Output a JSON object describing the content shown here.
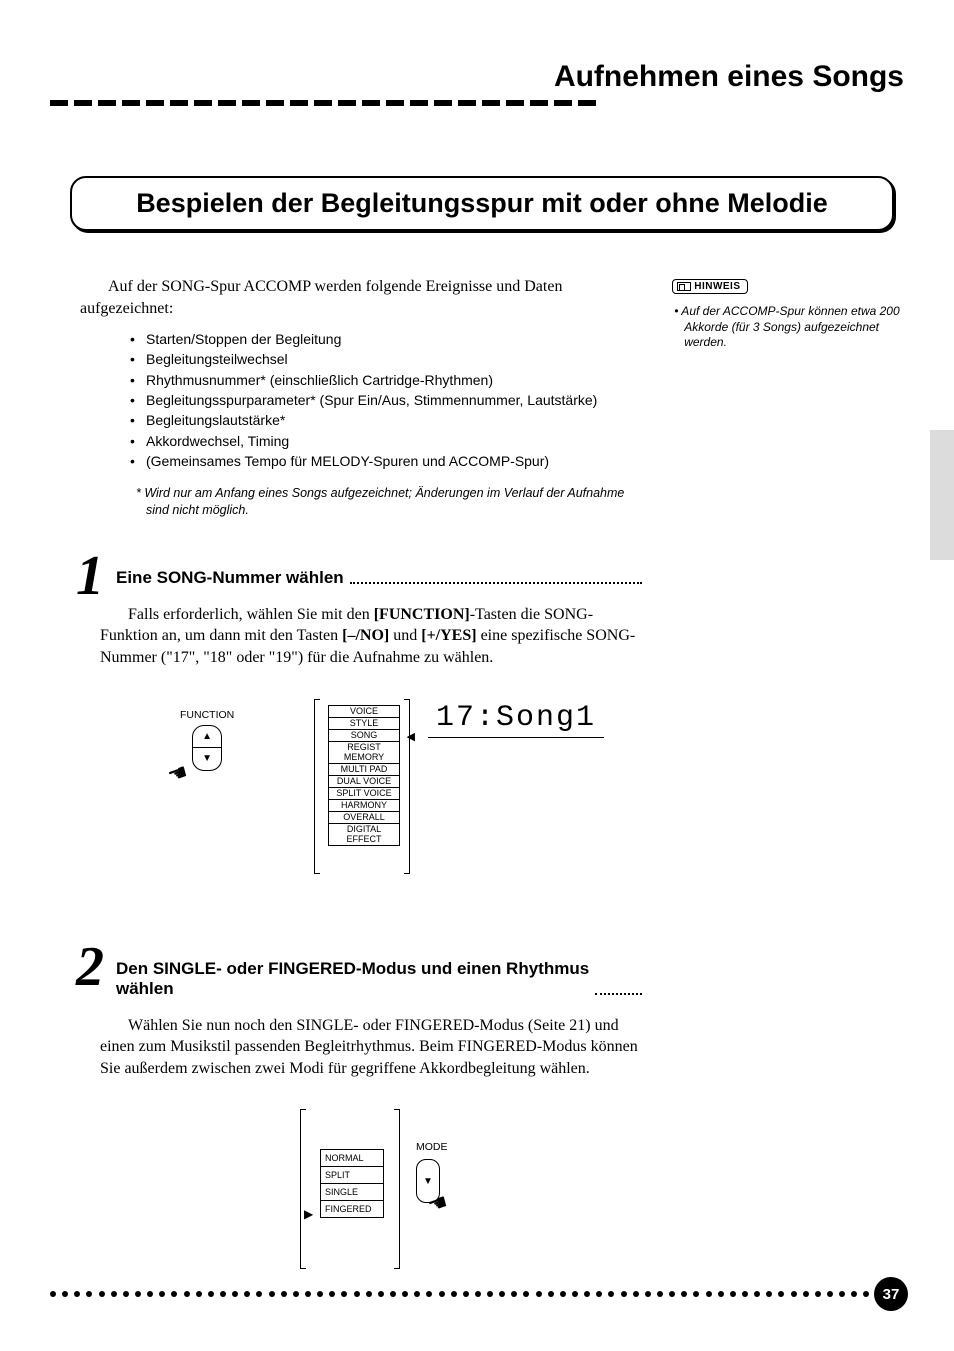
{
  "page": {
    "title": "Aufnehmen eines Songs",
    "number": "37"
  },
  "section_heading": "Bespielen der Begleitungsspur mit oder ohne Melodie",
  "intro": "Auf der SONG-Spur ACCOMP werden folgende Ereignisse und Daten aufgezeichnet:",
  "bullets": [
    "Starten/Stoppen der Begleitung",
    "Begleitungsteilwechsel",
    "Rhythmusnummer* (einschließlich Cartridge-Rhythmen)",
    "Begleitungsspurparameter* (Spur Ein/Aus, Stimmennummer, Lautstärke)",
    "Begleitungslautstärke*",
    "Akkordwechsel, Timing",
    "(Gemeinsames Tempo für MELODY-Spuren und ACCOMP-Spur)"
  ],
  "footnote": "*  Wird nur am Anfang eines Songs aufgezeichnet; Änderungen im Verlauf der Aufnahme sind nicht möglich.",
  "hinweis": {
    "label": "HINWEIS",
    "note": "• Auf der ACCOMP-Spur können etwa 200 Akkorde (für 3 Songs) aufgezeichnet werden."
  },
  "step1": {
    "num": "1",
    "heading": "Eine SONG-Nummer wählen",
    "body_pre": "Falls erforderlich, wählen Sie mit den ",
    "body_b1": "[FUNCTION]",
    "body_mid1": "-Tasten die SONG-Funktion an, um dann mit den Tasten ",
    "body_b2": "[–/NO]",
    "body_mid2": " und ",
    "body_b3": "[+/YES]",
    "body_post": " eine spezifische SONG-Nummer (\"17\", \"18\" oder \"19\") für die Aufnahme zu wählen.",
    "diagram": {
      "function_label": "FUNCTION",
      "menu": [
        "VOICE",
        "STYLE",
        "SONG",
        "REGIST MEMORY",
        "MULTI PAD",
        "DUAL VOICE",
        "SPLIT VOICE",
        "HARMONY",
        "OVERALL",
        "DIGITAL EFFECT"
      ],
      "selected_index": 2,
      "display": "17:Song1"
    }
  },
  "step2": {
    "num": "2",
    "heading": "Den SINGLE- oder FINGERED-Modus und einen Rhythmus wählen",
    "body": "Wählen Sie nun noch den SINGLE- oder FINGERED-Modus (Seite 21) und einen zum Musikstil passenden Begleitrhythmus. Beim FINGERED-Modus können Sie außerdem zwischen zwei Modi für gegriffene Akkordbegleitung wählen.",
    "diagram": {
      "mode_label": "MODE",
      "items": [
        "NORMAL",
        "SPLIT",
        "SINGLE",
        "FINGERED"
      ]
    }
  },
  "colors": {
    "text": "#000000",
    "bg": "#ffffff",
    "sidetab": "#dcdcdc"
  }
}
